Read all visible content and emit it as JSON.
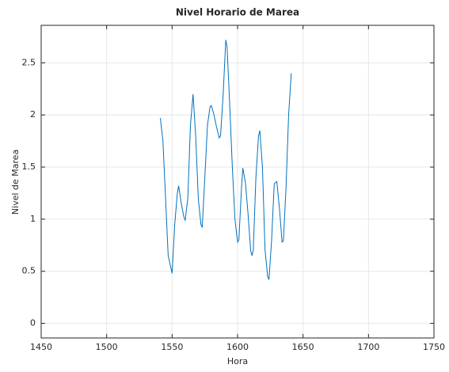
{
  "chart_data": {
    "type": "line",
    "title": "Nivel Horario de Marea",
    "xlabel": "Hora",
    "ylabel": "Nivel de Marea",
    "color": "#0072bd",
    "grid": true,
    "x": [
      1541,
      1543,
      1545,
      1547,
      1550,
      1552,
      1554,
      1555,
      1557,
      1559,
      1560,
      1562,
      1564,
      1566,
      1568,
      1570,
      1572,
      1573,
      1575,
      1577,
      1579,
      1580,
      1582,
      1584,
      1586,
      1587,
      1589,
      1591,
      1592,
      1594,
      1596,
      1598,
      1600,
      1601,
      1603,
      1604,
      1606,
      1608,
      1610,
      1611,
      1612,
      1614,
      1616,
      1617,
      1619,
      1621,
      1623,
      1624,
      1626,
      1628,
      1630,
      1632,
      1634,
      1635,
      1637,
      1639,
      1641
    ],
    "values": [
      1.97,
      1.75,
      1.2,
      0.65,
      0.48,
      0.95,
      1.25,
      1.32,
      1.15,
      1.02,
      0.99,
      1.2,
      1.9,
      2.2,
      1.8,
      1.2,
      0.95,
      0.92,
      1.4,
      1.9,
      2.08,
      2.09,
      2.0,
      1.88,
      1.78,
      1.8,
      2.2,
      2.72,
      2.65,
      2.1,
      1.5,
      1.0,
      0.78,
      0.8,
      1.3,
      1.49,
      1.35,
      1.05,
      0.7,
      0.65,
      0.7,
      1.4,
      1.8,
      1.85,
      1.5,
      0.7,
      0.45,
      0.42,
      0.8,
      1.34,
      1.36,
      1.1,
      0.78,
      0.79,
      1.3,
      2.0,
      2.4
    ],
    "xlim": [
      1450,
      1750
    ],
    "xticks": [
      1450,
      1500,
      1550,
      1600,
      1650,
      1700,
      1750
    ],
    "ylim": [
      -0.14,
      2.86
    ],
    "yticks": [
      0,
      0.5,
      1,
      1.5,
      2,
      2.5
    ]
  }
}
